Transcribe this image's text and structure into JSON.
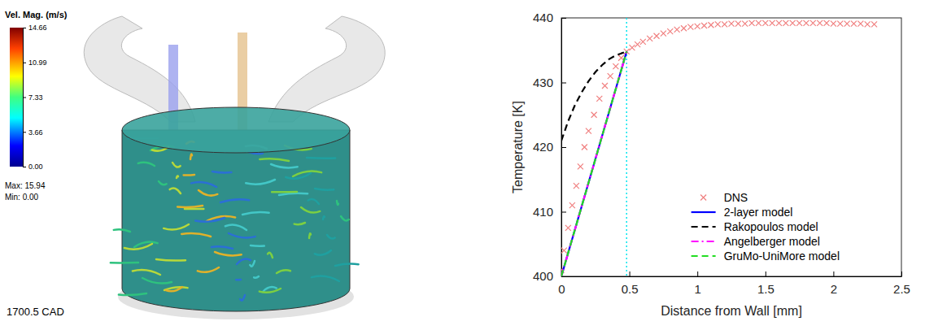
{
  "chart_data": {
    "type": "line",
    "x_label": "Distance from Wall [mm]",
    "y_label": "Temperature [K]",
    "xlim": [
      0,
      2.5
    ],
    "xticks": [
      0,
      0.5,
      1,
      1.5,
      2,
      2.5
    ],
    "ylim": [
      400,
      440
    ],
    "yticks": [
      400,
      410,
      420,
      430,
      440
    ],
    "legend": "lower right",
    "reference_line": {
      "x": 0.48,
      "color": "#00e5ee"
    },
    "series": [
      {
        "name": "DNS",
        "type": "scatter",
        "marker": "x",
        "color": "#f08080",
        "x": [
          0,
          0.02,
          0.05,
          0.08,
          0.11,
          0.14,
          0.17,
          0.2,
          0.24,
          0.28,
          0.32,
          0.36,
          0.4,
          0.44,
          0.48,
          0.52,
          0.56,
          0.6,
          0.65,
          0.7,
          0.75,
          0.8,
          0.85,
          0.9,
          0.95,
          1.0,
          1.05,
          1.1,
          1.15,
          1.2,
          1.25,
          1.3,
          1.35,
          1.4,
          1.45,
          1.5,
          1.55,
          1.6,
          1.65,
          1.7,
          1.75,
          1.8,
          1.85,
          1.9,
          1.95,
          2.0,
          2.05,
          2.1,
          2.15,
          2.2,
          2.25,
          2.3
        ],
        "values": [
          401,
          404,
          407.5,
          411,
          414,
          417,
          420,
          422.5,
          425,
          427.5,
          429.5,
          431,
          432.5,
          433.8,
          434.8,
          435.4,
          435.9,
          436.3,
          436.8,
          437.2,
          437.6,
          437.9,
          438.2,
          438.4,
          438.6,
          438.7,
          438.8,
          438.9,
          439,
          439,
          439.1,
          439.1,
          439.1,
          439.2,
          439.2,
          439.2,
          439.2,
          439.2,
          439.2,
          439.2,
          439.2,
          439.2,
          439.2,
          439.2,
          439.2,
          439.1,
          439.1,
          439.1,
          439.1,
          439.1,
          439,
          439
        ]
      },
      {
        "name": "2-layer model",
        "type": "line",
        "line_style": "solid",
        "color": "#0000ff",
        "x": [
          0,
          0.48
        ],
        "values": [
          400,
          434.8
        ]
      },
      {
        "name": "Rakopoulos model",
        "type": "line",
        "line_style": "dashed",
        "color": "#000000",
        "x": [
          0,
          0.05,
          0.1,
          0.15,
          0.2,
          0.25,
          0.3,
          0.35,
          0.4,
          0.48
        ],
        "values": [
          421,
          424,
          426.5,
          428.5,
          430.2,
          431.6,
          432.7,
          433.6,
          434.2,
          434.8
        ]
      },
      {
        "name": "Angelberger model",
        "type": "line",
        "line_style": "dashdot",
        "color": "#ff00ff",
        "x": [
          0,
          0.48
        ],
        "values": [
          400,
          434.8
        ]
      },
      {
        "name": "GruMo-UniMore model",
        "type": "line",
        "line_style": "dashed",
        "color": "#22dd22",
        "x": [
          0,
          0.48
        ],
        "values": [
          400,
          434.8
        ]
      }
    ]
  },
  "rendering": {
    "colorbar": {
      "title": "Vel. Mag. (m/s)",
      "range": [
        0,
        14.66
      ],
      "ticks": [
        {
          "value": 0,
          "label": "0.00"
        },
        3.66,
        7.33,
        10.99,
        14.66
      ]
    },
    "max_label": "Max: 15.94",
    "min_label": "Min: 0.00",
    "time_label": "1700.5 CAD"
  }
}
